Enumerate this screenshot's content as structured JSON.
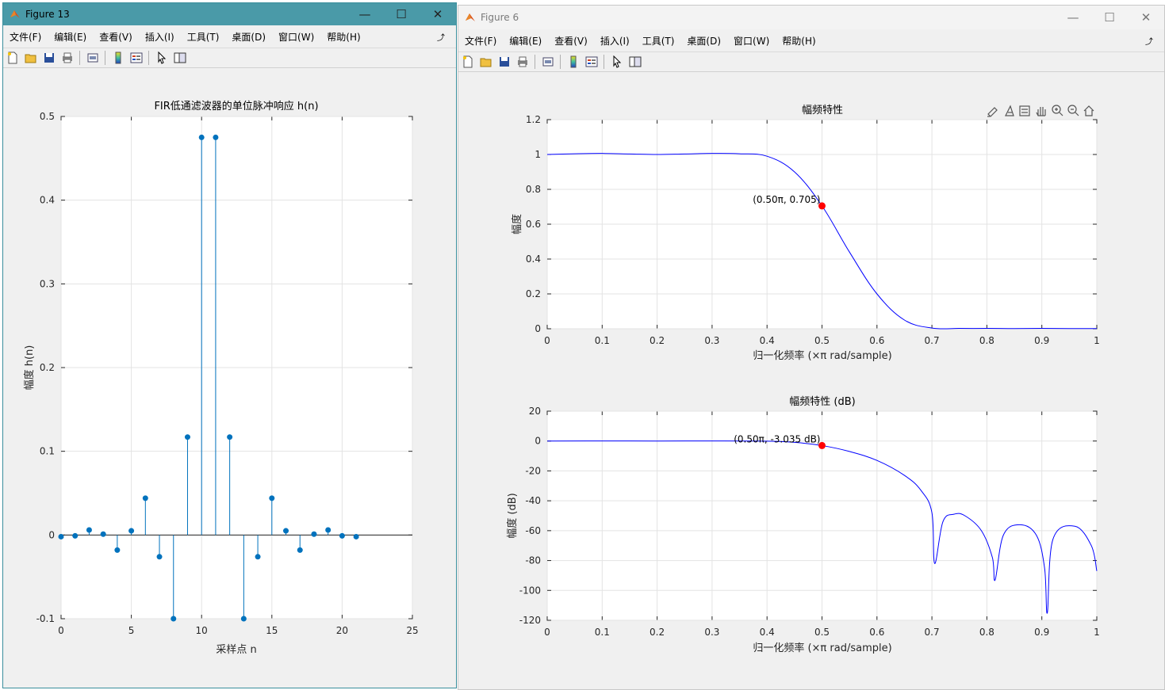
{
  "windows": {
    "left": {
      "title": "Figure 13",
      "menu": [
        "文件(F)",
        "编辑(E)",
        "查看(V)",
        "插入(I)",
        "工具(T)",
        "桌面(D)",
        "窗口(W)",
        "帮助(H)"
      ]
    },
    "right": {
      "title": "Figure 6",
      "menu": [
        "文件(F)",
        "编辑(E)",
        "查看(V)",
        "插入(I)",
        "工具(T)",
        "桌面(D)",
        "窗口(W)",
        "帮助(H)"
      ]
    }
  },
  "toolbar_icons": [
    "new-file-icon",
    "open-folder-icon",
    "save-icon",
    "print-icon",
    "print-preview-icon",
    "colorbar-icon",
    "legend-icon",
    "pointer-icon",
    "property-editor-icon"
  ],
  "axes_toolbar_icons": [
    "brush-icon",
    "data-tip-icon",
    "restore-view-icon",
    "pan-icon",
    "zoom-in-icon",
    "zoom-out-icon",
    "home-icon"
  ],
  "colors": {
    "stem": "#0072bd",
    "curve": "#0000ff",
    "marker": "#ff0000",
    "title_bar_active": "#4a9aa8"
  },
  "chart_data": [
    {
      "type": "stem",
      "title": "FIR低通滤波器的单位脉冲响应 h(n)",
      "xlabel": "采样点 n",
      "ylabel": "幅度 h(n)",
      "xlim": [
        0,
        25
      ],
      "ylim": [
        -0.1,
        0.5
      ],
      "xticks": [
        0,
        5,
        10,
        15,
        20,
        25
      ],
      "yticks": [
        -0.1,
        0,
        0.1,
        0.2,
        0.3,
        0.4,
        0.5
      ],
      "grid": true,
      "x": [
        0,
        1,
        2,
        3,
        4,
        5,
        6,
        7,
        8,
        9,
        10,
        11,
        12,
        13,
        14,
        15,
        16,
        17,
        18,
        19,
        20,
        21
      ],
      "values": [
        -0.002,
        -0.001,
        0.006,
        0.001,
        -0.018,
        0.005,
        0.044,
        -0.026,
        -0.1,
        0.117,
        0.475,
        0.475,
        0.117,
        -0.1,
        -0.026,
        0.044,
        0.005,
        -0.018,
        0.001,
        0.006,
        -0.001,
        -0.002
      ]
    },
    {
      "type": "line",
      "title": "幅频特性",
      "xlabel": "归一化频率 (×π rad/sample)",
      "ylabel": "幅度",
      "xlim": [
        0,
        1
      ],
      "ylim": [
        0,
        1.2
      ],
      "xticks": [
        0,
        0.1,
        0.2,
        0.3,
        0.4,
        0.5,
        0.6,
        0.7,
        0.8,
        0.9,
        1
      ],
      "yticks": [
        0,
        0.2,
        0.4,
        0.6,
        0.8,
        1,
        1.2
      ],
      "grid": true,
      "x": [
        0,
        0.05,
        0.1,
        0.15,
        0.2,
        0.25,
        0.3,
        0.35,
        0.4,
        0.45,
        0.5,
        0.55,
        0.6,
        0.65,
        0.7,
        0.75,
        0.8,
        0.85,
        0.9,
        0.95,
        1
      ],
      "values": [
        1,
        1.004,
        1.006,
        1.003,
        1,
        1.003,
        1.006,
        1.004,
        0.99,
        0.9,
        0.705,
        0.44,
        0.2,
        0.05,
        0.004,
        0.002,
        0.002,
        0.001,
        0.002,
        0.001,
        0.001
      ],
      "annotation": {
        "x": 0.5,
        "y": 0.705,
        "label": "(0.50π, 0.705)"
      }
    },
    {
      "type": "line",
      "title": "幅频特性 (dB)",
      "xlabel": "归一化频率 (×π rad/sample)",
      "ylabel": "幅度 (dB)",
      "xlim": [
        0,
        1
      ],
      "ylim": [
        -120,
        20
      ],
      "xticks": [
        0,
        0.1,
        0.2,
        0.3,
        0.4,
        0.5,
        0.6,
        0.7,
        0.8,
        0.9,
        1
      ],
      "yticks": [
        -120,
        -100,
        -80,
        -60,
        -40,
        -20,
        0,
        20
      ],
      "grid": true,
      "x": [
        0,
        0.1,
        0.2,
        0.3,
        0.4,
        0.45,
        0.5,
        0.55,
        0.6,
        0.65,
        0.68,
        0.7,
        0.705,
        0.72,
        0.74,
        0.76,
        0.79,
        0.81,
        0.815,
        0.83,
        0.86,
        0.89,
        0.905,
        0.91,
        0.92,
        0.96,
        0.99,
        1
      ],
      "values": [
        0,
        0.05,
        0,
        0.05,
        -0.1,
        -0.9,
        -3.035,
        -7,
        -13,
        -23,
        -33,
        -48,
        -82,
        -54,
        -49,
        -50,
        -60,
        -78,
        -93,
        -63,
        -56,
        -63,
        -85,
        -115,
        -66,
        -57,
        -70,
        -87
      ],
      "annotation": {
        "x": 0.5,
        "y": -3.035,
        "label": "(0.50π, -3.035 dB)"
      }
    }
  ]
}
